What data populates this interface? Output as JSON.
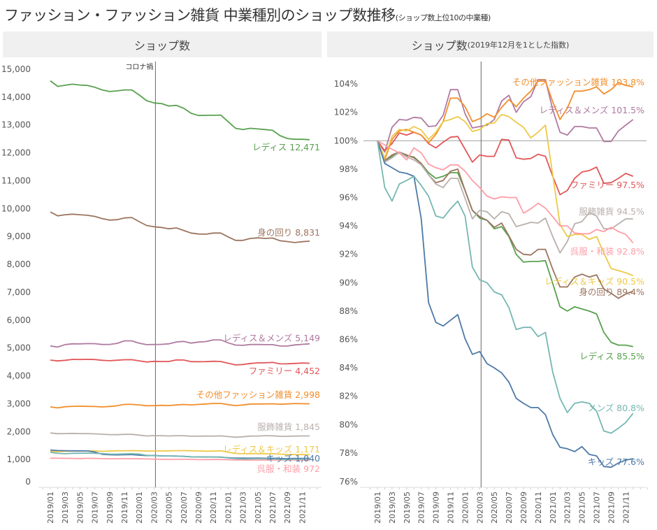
{
  "header": {
    "title": "ファッション・ファッション雑貨 中業種別のショップ数推移",
    "subtitle": "(ショップ数上位10の中業種)"
  },
  "chart_data": [
    {
      "type": "line",
      "title": "ショップ数",
      "x": [
        "2019/01",
        "2019/02",
        "2019/03",
        "2019/04",
        "2019/05",
        "2019/06",
        "2019/07",
        "2019/08",
        "2019/09",
        "2019/10",
        "2019/11",
        "2019/12",
        "2020/01",
        "2020/02",
        "2020/03",
        "2020/04",
        "2020/05",
        "2020/06",
        "2020/07",
        "2020/08",
        "2020/09",
        "2020/10",
        "2020/11",
        "2020/12",
        "2021/01",
        "2021/02",
        "2021/03",
        "2021/04",
        "2021/05",
        "2021/06",
        "2021/07",
        "2021/08",
        "2021/09",
        "2021/10",
        "2021/11",
        "2021/12"
      ],
      "x_tick_labels": [
        "2019/01",
        "2019/03",
        "2019/05",
        "2019/07",
        "2019/09",
        "2019/11",
        "2020/01",
        "2020/03",
        "2020/05",
        "2020/07",
        "2020/09",
        "2020/11",
        "2021/01",
        "2021/03",
        "2021/05",
        "2021/07",
        "2021/09",
        "2021/11"
      ],
      "ylim": [
        0,
        15000
      ],
      "y_tick_labels": [
        "0",
        "1,000",
        "2,000",
        "3,000",
        "4,000",
        "5,000",
        "6,000",
        "7,000",
        "8,000",
        "9,000",
        "10,000",
        "11,000",
        "12,000",
        "13,000",
        "14,000",
        "15,000"
      ],
      "annotation": {
        "label": "コロナ禍",
        "x": "2020/03"
      },
      "grid": false,
      "series": [
        {
          "name": "レディス",
          "label": "レディス 12,471",
          "color": "#59a14f",
          "first_value": 14586,
          "last_value": 12471
        },
        {
          "name": "身の回り",
          "label": "身の回り 8,831",
          "color": "#9c755f",
          "first_value": 9878,
          "last_value": 8831
        },
        {
          "name": "レディス＆メンズ",
          "label": "レディス＆メンズ 5,149",
          "color": "#b07aa1",
          "first_value": 5073,
          "last_value": 5149
        },
        {
          "name": "ファミリー",
          "label": "ファミリー 4,452",
          "color": "#e15759",
          "first_value": 4566,
          "last_value": 4452
        },
        {
          "name": "その他ファッション雑貨",
          "label": "その他ファッション雑貨 2,998",
          "color": "#f28e2b",
          "first_value": 2888,
          "last_value": 2998
        },
        {
          "name": "服飾雑貨",
          "label": "服飾雑貨 1,845",
          "color": "#bab0ac",
          "first_value": 1952,
          "last_value": 1845
        },
        {
          "name": "レディス＆キッズ",
          "label": "レディス＆キッズ 1,171",
          "color": "#edc948",
          "first_value": 1294,
          "last_value": 1171
        },
        {
          "name": "キッズ",
          "label": "キッズ 1,040",
          "color": "#4e79a7",
          "first_value": 1340,
          "last_value": 1040
        },
        {
          "name": "呉服・和装",
          "label": "呉服・和装 972",
          "color": "#ff9da7",
          "first_value": 1047,
          "last_value": 972
        },
        {
          "name": "メンズ",
          "label": "",
          "color": "#76b7b2",
          "first_value": 1260,
          "last_value": 1018
        }
      ]
    },
    {
      "type": "line",
      "title": "ショップ数",
      "title_note": "(2019年12月を1とした指数)",
      "x_tick_labels": [
        "2019/01",
        "2019/03",
        "2019/05",
        "2019/07",
        "2019/09",
        "2019/11",
        "2020/01",
        "2020/03",
        "2020/05",
        "2020/07",
        "2020/09",
        "2020/11",
        "2021/01",
        "2021/03",
        "2021/05",
        "2021/07",
        "2021/09",
        "2021/11"
      ],
      "ylim": [
        76,
        104
      ],
      "y_tick_labels": [
        "76%",
        "78%",
        "80%",
        "82%",
        "84%",
        "86%",
        "88%",
        "90%",
        "92%",
        "94%",
        "96%",
        "98%",
        "100%",
        "102%",
        "104%"
      ],
      "reference_line": 100,
      "annotation_x": "2020/03",
      "grid": false,
      "series": [
        {
          "name": "レディス",
          "label": "レディス 85.5%",
          "color": "#59a14f",
          "values": [
            100,
            98.6,
            98.9,
            99.15,
            98.95,
            98.85,
            98.4,
            97.75,
            97.35,
            97.5,
            97.75,
            97.75,
            96.5,
            95.1,
            94.55,
            94.4,
            93.8,
            93.95,
            93.25,
            92.0,
            91.45,
            91.5,
            91.5,
            91.55,
            89.95,
            88.3,
            88.0,
            88.3,
            88.15,
            88.0,
            87.8,
            86.5,
            85.8,
            85.6,
            85.6,
            85.5
          ]
        },
        {
          "name": "身の回り",
          "label": "身の回り 89.4%",
          "color": "#9c755f",
          "values": [
            100,
            98.6,
            99.0,
            99.2,
            99.0,
            98.8,
            98.4,
            97.6,
            97.05,
            97.2,
            97.85,
            98.0,
            96.5,
            95.1,
            94.65,
            94.4,
            93.9,
            94.2,
            93.3,
            92.35,
            92.0,
            91.95,
            92.35,
            92.35,
            90.95,
            89.7,
            89.7,
            90.4,
            90.6,
            90.4,
            90.55,
            89.55,
            89.25,
            88.9,
            89.2,
            89.4
          ]
        },
        {
          "name": "レディス＆メンズ",
          "label": "レディス＆メンズ 101.5%",
          "color": "#b07aa1",
          "values": [
            100,
            99.2,
            100.95,
            101.5,
            101.45,
            101.65,
            101.6,
            101.0,
            101.05,
            101.8,
            103.6,
            103.6,
            101.9,
            100.9,
            101.0,
            101.1,
            101.5,
            102.8,
            103.2,
            102.0,
            102.75,
            103.1,
            104.3,
            104.3,
            102.2,
            100.6,
            100.4,
            101.0,
            101.0,
            100.9,
            100.9,
            99.95,
            99.95,
            100.7,
            101.1,
            101.5
          ]
        },
        {
          "name": "ファミリー",
          "label": "ファミリー 97.5%",
          "color": "#e15759",
          "values": [
            100,
            99.3,
            99.8,
            100.55,
            100.4,
            100.6,
            100.4,
            99.8,
            99.5,
            99.9,
            100.25,
            100.3,
            99.4,
            98.5,
            99.0,
            98.9,
            98.9,
            100.1,
            100.05,
            98.8,
            98.7,
            98.75,
            99.05,
            98.9,
            97.5,
            96.2,
            96.5,
            97.35,
            97.8,
            97.9,
            98.15,
            97.0,
            97.05,
            97.35,
            97.7,
            97.5
          ]
        },
        {
          "name": "その他ファッション雑貨",
          "label": "その他ファッション雑貨 103.8%",
          "color": "#f28e2b",
          "values": [
            100,
            98.65,
            100.1,
            100.7,
            100.8,
            100.6,
            100.4,
            99.85,
            100.45,
            101.35,
            103.0,
            103.0,
            102.4,
            101.35,
            101.55,
            101.9,
            101.65,
            102.35,
            102.9,
            102.4,
            103.0,
            103.5,
            104.2,
            104.2,
            102.75,
            101.5,
            102.3,
            103.5,
            103.5,
            103.6,
            103.8,
            103.3,
            103.6,
            104.1,
            103.9,
            103.8
          ]
        },
        {
          "name": "服飾雑貨",
          "label": "服飾雑貨 94.5%",
          "color": "#bab0ac",
          "values": [
            100,
            98.5,
            98.8,
            99.2,
            98.85,
            98.65,
            98.3,
            97.6,
            96.95,
            96.7,
            97.35,
            97.35,
            95.95,
            94.5,
            95.1,
            95.0,
            94.5,
            95.0,
            94.85,
            93.95,
            94.1,
            94.25,
            94.2,
            94.55,
            93.25,
            92.1,
            92.9,
            94.15,
            94.3,
            94.95,
            94.7,
            93.8,
            93.8,
            94.15,
            94.5,
            94.5
          ]
        },
        {
          "name": "レディス＆キッズ",
          "label": "レディス＆キッズ 90.5%",
          "color": "#edc948",
          "values": [
            100,
            98.8,
            100.3,
            100.8,
            100.7,
            101.0,
            100.75,
            100.1,
            100.6,
            101.35,
            101.5,
            101.7,
            101.35,
            100.65,
            100.8,
            101.2,
            101.25,
            101.85,
            101.7,
            101.3,
            100.95,
            100.2,
            100.6,
            101.1,
            97.6,
            94.1,
            93.25,
            93.4,
            93.4,
            93.05,
            93.25,
            92.1,
            91.0,
            90.85,
            90.7,
            90.5
          ]
        },
        {
          "name": "キッズ",
          "label": "キッズ 77.6%",
          "color": "#4e79a7",
          "values": [
            100,
            98.4,
            98.1,
            97.8,
            97.7,
            97.5,
            94.5,
            88.6,
            87.2,
            86.95,
            87.35,
            87.75,
            86.05,
            84.95,
            85.15,
            84.3,
            84.0,
            83.65,
            83.0,
            81.85,
            81.5,
            81.2,
            81.2,
            80.7,
            79.3,
            78.4,
            78.3,
            78.1,
            78.45,
            77.9,
            77.8,
            77.05,
            77.0,
            77.3,
            77.5,
            77.6
          ]
        },
        {
          "name": "呉服・和装",
          "label": "呉服・和装 92.8%",
          "color": "#ff9da7",
          "values": [
            100,
            99.7,
            99.4,
            99.15,
            98.65,
            99.5,
            99.15,
            98.35,
            98.1,
            97.95,
            98.3,
            98.3,
            97.85,
            97.2,
            96.7,
            96.1,
            95.9,
            96.05,
            96.0,
            96.0,
            94.9,
            95.2,
            95.6,
            95.25,
            94.65,
            94.0,
            94.0,
            93.5,
            93.45,
            93.45,
            93.75,
            93.6,
            93.9,
            93.6,
            93.4,
            92.8
          ]
        },
        {
          "name": "メンズ",
          "label": "メンズ 80.8%",
          "color": "#76b7b2",
          "values": [
            100,
            96.7,
            95.75,
            96.95,
            97.2,
            97.5,
            96.85,
            96.1,
            94.7,
            94.55,
            95.2,
            95.75,
            94.7,
            91.1,
            90.2,
            90.0,
            89.35,
            89.15,
            88.25,
            86.7,
            86.85,
            86.85,
            86.2,
            86.5,
            83.7,
            81.85,
            80.85,
            81.5,
            81.6,
            81.5,
            80.95,
            79.55,
            79.4,
            79.75,
            80.15,
            80.8
          ]
        }
      ]
    }
  ]
}
